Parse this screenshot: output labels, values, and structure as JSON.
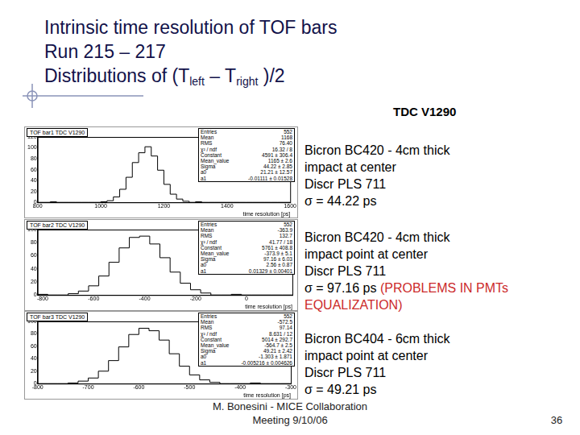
{
  "slide": {
    "title": [
      [
        {
          "text": "Intrinsic time resolution of TOF bars"
        }
      ],
      [
        {
          "text": "Run 215 – 217"
        }
      ],
      [
        {
          "text": "Distributions of (T"
        },
        {
          "text": "left",
          "sub": true
        },
        {
          "text": " – T"
        },
        {
          "text": "right",
          "sub": true
        },
        {
          "text": " )/2"
        }
      ]
    ],
    "header": "TDC V1290",
    "descriptions": [
      {
        "lines": [
          "Bicron BC420 - 4cm thick",
          "impact at center",
          "Discr PLS 711",
          "σ = 44.22 ps"
        ]
      },
      {
        "lines": [
          "Bicron BC420 - 4cm thick",
          "impact point at center",
          "Discr PLS 711",
          "σ = 97.16 ps"
        ],
        "note": "(PROBLEMS IN PMTs EQUALIZATION)"
      },
      {
        "lines": [
          "Bicron BC404 - 6cm thick",
          "impact point at center",
          "Discr PLS 711",
          "σ = 49.21 ps"
        ]
      }
    ],
    "footer": [
      "M. Bonesini - MICE Collaboration",
      "Meeting 9/10/06"
    ],
    "page": "36"
  },
  "chart_data": [
    {
      "type": "histogram",
      "title": "TOF bar1  TDC V1290",
      "x_label": "time resolution [ps]",
      "bins": [
        800,
        820,
        840,
        860,
        880,
        900,
        920,
        940,
        960,
        980,
        1000,
        1020,
        1040,
        1060,
        1080,
        1100,
        1120,
        1140,
        1160,
        1180,
        1200,
        1220,
        1240,
        1260,
        1280,
        1300,
        1320,
        1340,
        1360,
        1380,
        1400,
        1420,
        1440,
        1460,
        1480,
        1500,
        1520,
        1540,
        1560,
        1580,
        1600
      ],
      "values": [
        0,
        0,
        0,
        1,
        0,
        0,
        0,
        0,
        0,
        0,
        0,
        1,
        3,
        10,
        24,
        46,
        73,
        91,
        102,
        85,
        59,
        33,
        15,
        6,
        2,
        0,
        1,
        0,
        0,
        0,
        0,
        0,
        0,
        0,
        0,
        0,
        0,
        0,
        0,
        0
      ],
      "color": "#000000",
      "grid": false,
      "xlim": [
        800,
        1600
      ],
      "xticks": [
        800,
        1000,
        1200,
        1400,
        1600
      ],
      "ylim": [
        0,
        120
      ],
      "yticks": [
        0,
        20,
        40,
        60,
        80,
        100,
        120
      ],
      "stats": [
        [
          "Entries",
          "552"
        ],
        [
          "Mean",
          "1168"
        ],
        [
          "RMS",
          "76.40"
        ],
        [
          "χ² / ndf",
          "16.32 / 8"
        ],
        [
          "Constant",
          "4591 ± 306.4"
        ],
        [
          "Mean_value",
          "1165 ± 2.6"
        ],
        [
          "Sigma",
          "44.22 ± 2.85"
        ],
        [
          "a0",
          "21.21 ± 12.57"
        ],
        [
          "a1",
          "-0.01111 ± 0.01528"
        ]
      ]
    },
    {
      "type": "histogram",
      "title": "TOF bar2  TDC V1290",
      "x_label": "time resolution [ps]",
      "bins": [
        -820,
        -780,
        -740,
        -700,
        -660,
        -620,
        -580,
        -540,
        -500,
        -460,
        -420,
        -380,
        -340,
        -300,
        -260,
        -220,
        -180,
        -140,
        -100,
        -60,
        -20,
        20,
        60,
        100,
        140,
        180
      ],
      "values": [
        0,
        1,
        0,
        0,
        2,
        6,
        14,
        29,
        50,
        72,
        88,
        90,
        78,
        57,
        35,
        18,
        8,
        3,
        0,
        0,
        1,
        0,
        0,
        0,
        0
      ],
      "color": "#000000",
      "grid": false,
      "xlim": [
        -820,
        180
      ],
      "xticks": [
        -800,
        -600,
        -400,
        -200,
        0
      ],
      "ylim": [
        0,
        100
      ],
      "yticks": [
        0,
        20,
        40,
        60,
        80,
        100
      ],
      "stats": [
        [
          "Entries",
          "552"
        ],
        [
          "Mean",
          "-363.9"
        ],
        [
          "RMS",
          "132.7"
        ],
        [
          "χ² / ndf",
          "41.77 / 18"
        ],
        [
          "Constant",
          "5761 ± 408.8"
        ],
        [
          "Mean_value",
          "-373.9 ± 5.1"
        ],
        [
          "Sigma",
          "97.16 ± 6.03"
        ],
        [
          "a0",
          "2.56 ± 0.87"
        ],
        [
          "a1",
          "0.01329 ± 0.00401"
        ]
      ]
    },
    {
      "type": "histogram",
      "title": "TOF bar3  TDC V1290",
      "x_label": "time resolution [ps]",
      "bins": [
        -800,
        -780,
        -760,
        -740,
        -720,
        -700,
        -680,
        -660,
        -640,
        -620,
        -600,
        -580,
        -560,
        -540,
        -520,
        -500,
        -480,
        -460,
        -440,
        -420,
        -400,
        -380,
        -360,
        -340,
        -320,
        -300
      ],
      "values": [
        0,
        0,
        0,
        0,
        1,
        4,
        9,
        20,
        37,
        59,
        79,
        89,
        85,
        70,
        48,
        28,
        14,
        6,
        2,
        0,
        0,
        0,
        1,
        0,
        0
      ],
      "color": "#000000",
      "grid": false,
      "xlim": [
        -800,
        -300
      ],
      "xticks": [
        -800,
        -700,
        -600,
        -500,
        -400,
        -300
      ],
      "ylim": [
        0,
        100
      ],
      "yticks": [
        0,
        20,
        40,
        60,
        80,
        100
      ],
      "stats": [
        [
          "Entries",
          "552"
        ],
        [
          "Mean",
          "-572.5"
        ],
        [
          "RMS",
          "97.14"
        ],
        [
          "χ² / ndf",
          "8.631 / 12"
        ],
        [
          "Constant",
          "5014 ± 292.7"
        ],
        [
          "Mean_value",
          "-564.7 ± 2.5"
        ],
        [
          "Sigma",
          "49.21 ± 2.42"
        ],
        [
          "a0",
          "-1.303 ± 1.871"
        ],
        [
          "a1",
          "-0.005216 ± 0.004626"
        ]
      ]
    }
  ]
}
